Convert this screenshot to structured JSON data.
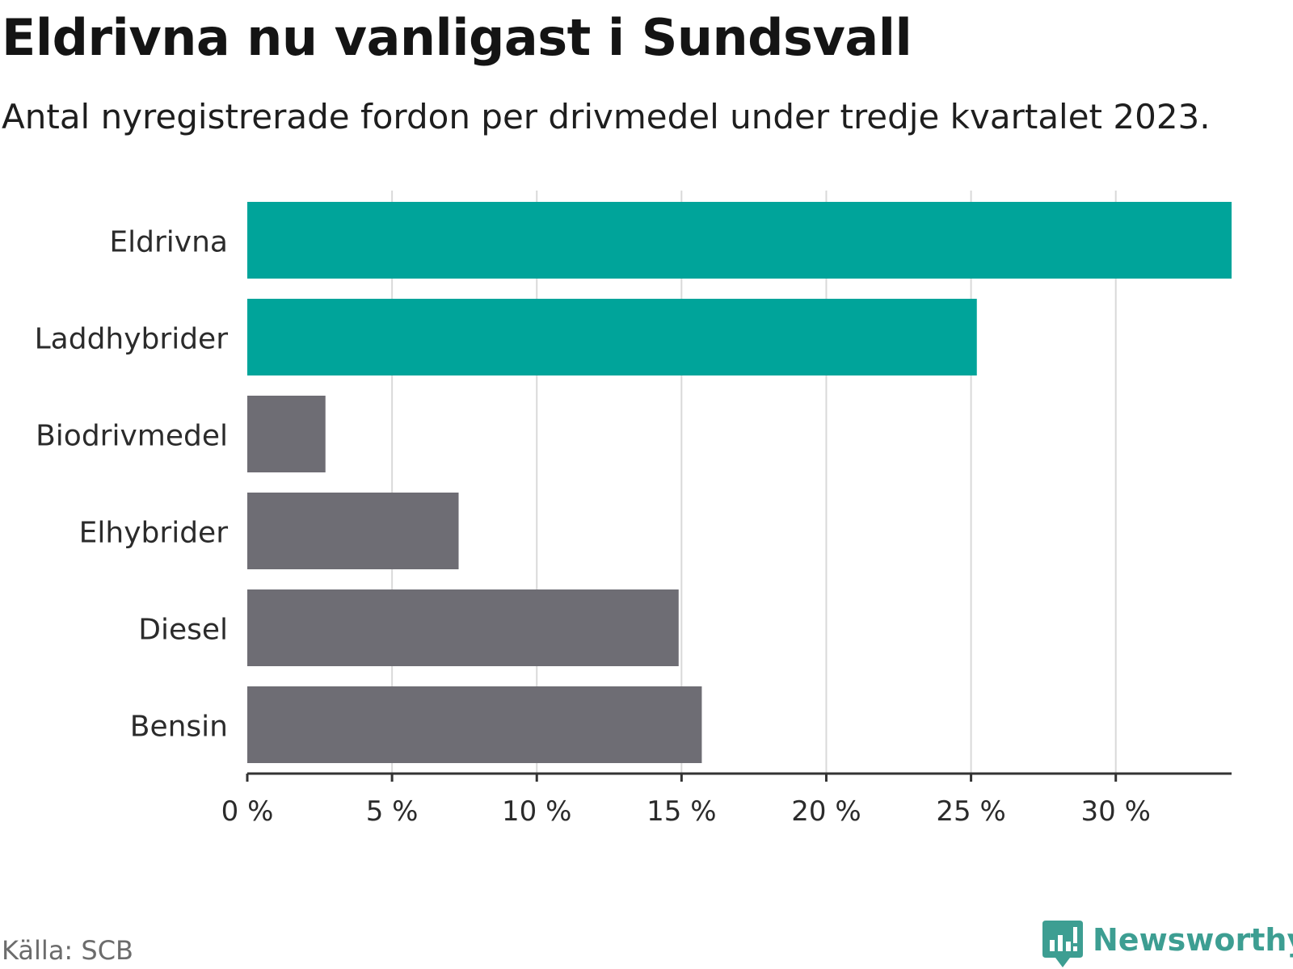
{
  "title": "Eldrivna nu vanligast i Sundsvall",
  "subtitle": "Antal nyregistrerade fordon per drivmedel under tredje kvartalet 2023.",
  "source": "Källa: SCB",
  "brand": "Newsworthy",
  "colors": {
    "highlight": "#00a49a",
    "default": "#6e6d74",
    "grid": "#d9d9d9",
    "axis": "#333333",
    "brand": "#3d9e92"
  },
  "chart_data": {
    "type": "bar",
    "orientation": "horizontal",
    "title": "Eldrivna nu vanligast i Sundsvall",
    "subtitle": "Antal nyregistrerade fordon per drivmedel under tredje kvartalet 2023.",
    "categories": [
      "Eldrivna",
      "Laddhybrider",
      "Biodrivmedel",
      "Elhybrider",
      "Diesel",
      "Bensin"
    ],
    "values": [
      34.0,
      25.2,
      2.7,
      7.3,
      14.9,
      15.7
    ],
    "highlighted": [
      true,
      true,
      false,
      false,
      false,
      false
    ],
    "unit": "%",
    "xlim": [
      0,
      34
    ],
    "xticks": [
      0,
      5,
      10,
      15,
      20,
      25,
      30
    ],
    "xtick_labels": [
      "0 %",
      "5 %",
      "10 %",
      "15 %",
      "20 %",
      "25 %",
      "30 %"
    ],
    "grid": true,
    "xlabel": "",
    "ylabel": ""
  }
}
